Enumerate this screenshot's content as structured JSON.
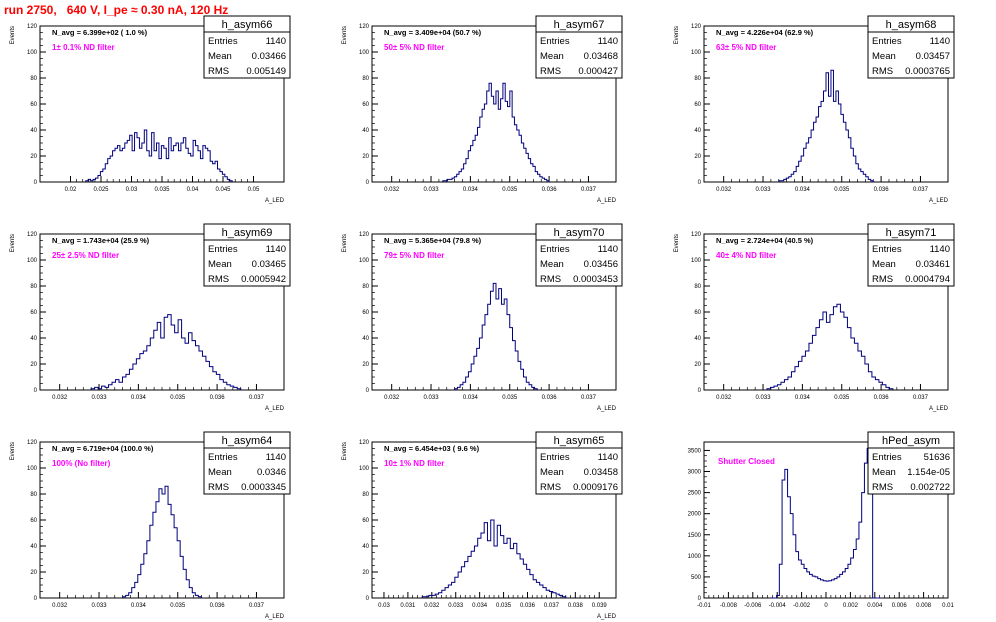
{
  "page_title": "run 2750,   640 V, I_pe ≈ 0.30 nA, 120 Hz",
  "colors": {
    "histogram": "#00007f",
    "annotation": "#ff00ff",
    "title_text": "#ff0000",
    "axis": "#000000"
  },
  "chart_data": [
    {
      "type": "bar",
      "name": "h_asym66",
      "navg": "N_avg = 6.399e+02 ( 1.0 %)",
      "filter": "1± 0.1% ND filter",
      "stats": [
        {
          "label": "Entries",
          "value": "1140"
        },
        {
          "label": "Mean",
          "value": "0.03466"
        },
        {
          "label": "RMS",
          "value": "0.005149"
        }
      ],
      "ylabel": "Events",
      "xlabel": "A_LED",
      "xlim": [
        0.015,
        0.055
      ],
      "ylim": [
        0,
        120
      ],
      "yticks": [
        0,
        20,
        40,
        60,
        80,
        100,
        120
      ],
      "xticks": [
        0.02,
        0.025,
        0.03,
        0.035,
        0.04,
        0.045,
        0.05
      ],
      "xtick_labels": [
        "0.02",
        "0.025",
        "0.03",
        "0.035",
        "0.04",
        "0.045",
        "0.05"
      ],
      "x_range": [
        0.0225,
        0.0465
      ],
      "counts": [
        1,
        2,
        1,
        2,
        3,
        5,
        8,
        10,
        14,
        18,
        20,
        24,
        26,
        28,
        24,
        26,
        30,
        32,
        36,
        24,
        38,
        34,
        26,
        30,
        40,
        24,
        20,
        38,
        24,
        30,
        18,
        28,
        26,
        18,
        34,
        24,
        28,
        30,
        24,
        30,
        34,
        26,
        22,
        20,
        32,
        28,
        24,
        18,
        28,
        26,
        24,
        16,
        14,
        16,
        10,
        8,
        6,
        4,
        2,
        1
      ]
    },
    {
      "type": "bar",
      "name": "h_asym67",
      "navg": "N_avg = 3.409e+04 (50.7 %)",
      "filter": "50± 5% ND filter",
      "stats": [
        {
          "label": "Entries",
          "value": "1140"
        },
        {
          "label": "Mean",
          "value": "0.03468"
        },
        {
          "label": "RMS",
          "value": "0.000427"
        }
      ],
      "ylabel": "Events",
      "xlabel": "A_LED",
      "xlim": [
        0.0315,
        0.0377
      ],
      "ylim": [
        0,
        120
      ],
      "yticks": [
        0,
        20,
        40,
        60,
        80,
        100,
        120
      ],
      "xticks": [
        0.032,
        0.033,
        0.034,
        0.035,
        0.036,
        0.037
      ],
      "xtick_labels": [
        "0.032",
        "0.033",
        "0.034",
        "0.035",
        "0.036",
        "0.037"
      ],
      "x_range": [
        0.0333,
        0.036
      ],
      "counts": [
        1,
        1,
        2,
        2,
        3,
        4,
        6,
        8,
        10,
        14,
        18,
        24,
        28,
        32,
        36,
        42,
        50,
        56,
        60,
        70,
        76,
        66,
        60,
        70,
        56,
        64,
        76,
        62,
        58,
        70,
        50,
        44,
        40,
        36,
        30,
        26,
        22,
        18,
        14,
        12,
        8,
        6,
        4,
        3,
        2,
        1
      ]
    },
    {
      "type": "bar",
      "name": "h_asym68",
      "navg": "N_avg = 4.226e+04 (62.9 %)",
      "filter": "63± 5% ND filter",
      "stats": [
        {
          "label": "Entries",
          "value": "1140"
        },
        {
          "label": "Mean",
          "value": "0.03457"
        },
        {
          "label": "RMS",
          "value": "0.0003765"
        }
      ],
      "ylabel": "Events",
      "xlabel": "A_LED",
      "xlim": [
        0.0315,
        0.0377
      ],
      "ylim": [
        0,
        120
      ],
      "yticks": [
        0,
        20,
        40,
        60,
        80,
        100,
        120
      ],
      "xticks": [
        0.032,
        0.033,
        0.034,
        0.035,
        0.036,
        0.037
      ],
      "xtick_labels": [
        "0.032",
        "0.033",
        "0.034",
        "0.035",
        "0.036",
        "0.037"
      ],
      "x_range": [
        0.0334,
        0.0358
      ],
      "counts": [
        1,
        1,
        2,
        3,
        4,
        6,
        8,
        12,
        16,
        20,
        26,
        30,
        34,
        40,
        46,
        50,
        58,
        62,
        70,
        84,
        66,
        86,
        62,
        70,
        60,
        52,
        46,
        40,
        34,
        26,
        20,
        14,
        10,
        8,
        6,
        4,
        2,
        1
      ]
    },
    {
      "type": "bar",
      "name": "h_asym69",
      "navg": "N_avg = 1.743e+04 (25.9 %)",
      "filter": "25± 2.5% ND filter",
      "stats": [
        {
          "label": "Entries",
          "value": "1140"
        },
        {
          "label": "Mean",
          "value": "0.03465"
        },
        {
          "label": "RMS",
          "value": "0.0005942"
        }
      ],
      "ylabel": "Events",
      "xlabel": "A_LED",
      "xlim": [
        0.0315,
        0.0377
      ],
      "ylim": [
        0,
        120
      ],
      "yticks": [
        0,
        20,
        40,
        60,
        80,
        100,
        120
      ],
      "xticks": [
        0.032,
        0.033,
        0.034,
        0.035,
        0.036,
        0.037
      ],
      "xtick_labels": [
        "0.032",
        "0.033",
        "0.034",
        "0.035",
        "0.036",
        "0.037"
      ],
      "x_range": [
        0.0328,
        0.0366
      ],
      "counts": [
        1,
        2,
        1,
        3,
        2,
        4,
        6,
        8,
        6,
        10,
        12,
        16,
        20,
        24,
        28,
        30,
        34,
        40,
        46,
        52,
        40,
        56,
        58,
        50,
        44,
        54,
        40,
        36,
        44,
        38,
        34,
        30,
        26,
        22,
        18,
        14,
        12,
        8,
        6,
        4,
        3,
        2,
        1
      ]
    },
    {
      "type": "bar",
      "name": "h_asym70",
      "navg": "N_avg = 5.365e+04 (79.8 %)",
      "filter": "79± 5% ND filter",
      "stats": [
        {
          "label": "Entries",
          "value": "1140"
        },
        {
          "label": "Mean",
          "value": "0.03456"
        },
        {
          "label": "RMS",
          "value": "0.0003453"
        }
      ],
      "ylabel": "Events",
      "xlabel": "A_LED",
      "xlim": [
        0.0315,
        0.0377
      ],
      "ylim": [
        0,
        120
      ],
      "yticks": [
        0,
        20,
        40,
        60,
        80,
        100,
        120
      ],
      "xticks": [
        0.032,
        0.033,
        0.034,
        0.035,
        0.036,
        0.037
      ],
      "xtick_labels": [
        "0.032",
        "0.033",
        "0.034",
        "0.035",
        "0.036",
        "0.037"
      ],
      "x_range": [
        0.0336,
        0.0357
      ],
      "counts": [
        1,
        2,
        4,
        6,
        10,
        14,
        20,
        26,
        32,
        40,
        50,
        58,
        66,
        76,
        82,
        70,
        78,
        66,
        70,
        58,
        48,
        38,
        30,
        22,
        16,
        10,
        6,
        4,
        2,
        1
      ]
    },
    {
      "type": "bar",
      "name": "h_asym71",
      "navg": "N_avg = 2.724e+04 (40.5 %)",
      "filter": "40± 4% ND filter",
      "stats": [
        {
          "label": "Entries",
          "value": "1140"
        },
        {
          "label": "Mean",
          "value": "0.03461"
        },
        {
          "label": "RMS",
          "value": "0.0004794"
        }
      ],
      "ylabel": "Events",
      "xlabel": "A_LED",
      "xlim": [
        0.0315,
        0.0377
      ],
      "ylim": [
        0,
        120
      ],
      "yticks": [
        0,
        20,
        40,
        60,
        80,
        100,
        120
      ],
      "xticks": [
        0.032,
        0.033,
        0.034,
        0.035,
        0.036,
        0.037
      ],
      "xtick_labels": [
        "0.032",
        "0.033",
        "0.034",
        "0.035",
        "0.036",
        "0.037"
      ],
      "x_range": [
        0.0331,
        0.0363
      ],
      "counts": [
        1,
        2,
        3,
        4,
        6,
        8,
        10,
        14,
        18,
        22,
        26,
        30,
        36,
        42,
        48,
        54,
        60,
        52,
        58,
        64,
        66,
        60,
        56,
        48,
        40,
        36,
        30,
        26,
        20,
        14,
        10,
        8,
        6,
        4,
        2,
        1
      ]
    },
    {
      "type": "bar",
      "name": "h_asym64",
      "navg": "N_avg = 6.719e+04 (100.0 %)",
      "filter": "100% (No filter)",
      "stats": [
        {
          "label": "Entries",
          "value": "1140"
        },
        {
          "label": "Mean",
          "value": "0.0346"
        },
        {
          "label": "RMS",
          "value": "0.0003345"
        }
      ],
      "ylabel": "Events",
      "xlabel": "A_LED",
      "xlim": [
        0.0315,
        0.0377
      ],
      "ylim": [
        0,
        120
      ],
      "yticks": [
        0,
        20,
        40,
        60,
        80,
        100,
        120
      ],
      "xticks": [
        0.032,
        0.033,
        0.034,
        0.035,
        0.036,
        0.037
      ],
      "xtick_labels": [
        "0.032",
        "0.033",
        "0.034",
        "0.035",
        "0.036",
        "0.037"
      ],
      "x_range": [
        0.0336,
        0.0356
      ],
      "counts": [
        1,
        2,
        4,
        8,
        12,
        18,
        26,
        34,
        44,
        56,
        66,
        74,
        84,
        80,
        86,
        72,
        64,
        54,
        44,
        32,
        22,
        14,
        8,
        4,
        2,
        1
      ]
    },
    {
      "type": "bar",
      "name": "h_asym65",
      "navg": "N_avg = 6.454e+03 ( 9.6 %)",
      "filter": "10± 1% ND filter",
      "stats": [
        {
          "label": "Entries",
          "value": "1140"
        },
        {
          "label": "Mean",
          "value": "0.03458"
        },
        {
          "label": "RMS",
          "value": "0.0009176"
        }
      ],
      "ylabel": "Events",
      "xlabel": "A_LED",
      "xlim": [
        0.0295,
        0.0397
      ],
      "ylim": [
        0,
        120
      ],
      "yticks": [
        0,
        20,
        40,
        60,
        80,
        100,
        120
      ],
      "xticks": [
        0.03,
        0.031,
        0.032,
        0.033,
        0.034,
        0.035,
        0.036,
        0.037,
        0.038,
        0.039
      ],
      "xtick_labels": [
        "0.03",
        "0.031",
        "0.032",
        "0.033",
        "0.034",
        "0.035",
        "0.036",
        "0.037",
        "0.038",
        "0.039"
      ],
      "x_range": [
        0.0316,
        0.0376
      ],
      "counts": [
        1,
        1,
        2,
        2,
        3,
        4,
        6,
        8,
        10,
        12,
        16,
        20,
        24,
        28,
        32,
        36,
        40,
        46,
        50,
        58,
        44,
        60,
        40,
        56,
        48,
        42,
        46,
        38,
        42,
        34,
        30,
        26,
        22,
        18,
        14,
        12,
        10,
        8,
        6,
        5,
        4,
        3,
        2,
        1
      ]
    },
    {
      "type": "bar",
      "name": "hPed_asym",
      "navg": "",
      "filter": "Shutter Closed",
      "stats": [
        {
          "label": "Entries",
          "value": "51636"
        },
        {
          "label": "Mean",
          "value": "1.154e-05"
        },
        {
          "label": "RMS",
          "value": "0.002722"
        }
      ],
      "ylabel": "",
      "xlabel": "",
      "xlim": [
        -0.01,
        0.01
      ],
      "ylim": [
        0,
        3700
      ],
      "yticks": [
        0,
        500,
        1000,
        1500,
        2000,
        2500,
        3000,
        3500
      ],
      "xticks": [
        -0.01,
        -0.008,
        -0.006,
        -0.004,
        -0.002,
        0,
        0.002,
        0.004,
        0.006,
        0.008,
        0.01
      ],
      "xtick_labels": [
        "-0.01",
        "-0.008",
        "-0.006",
        "-0.004",
        "-0.002",
        "0",
        "0.002",
        "0.004",
        "0.006",
        "0.008",
        "0.01"
      ],
      "x_range": [
        -0.0045,
        0.0045
      ],
      "counts": [
        0,
        0,
        60,
        800,
        2800,
        3050,
        2400,
        2000,
        1500,
        1100,
        900,
        800,
        700,
        620,
        560,
        520,
        500,
        460,
        430,
        410,
        400,
        410,
        430,
        460,
        500,
        560,
        620,
        700,
        800,
        950,
        1150,
        1400,
        1800,
        2500,
        3200,
        3550,
        3700,
        0,
        0,
        0
      ]
    }
  ]
}
